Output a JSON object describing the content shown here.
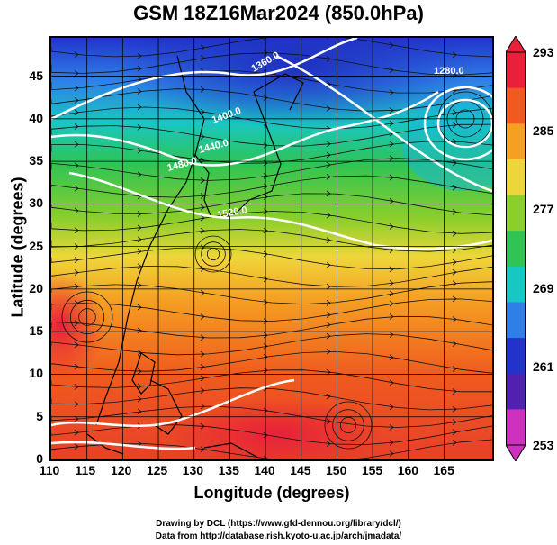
{
  "title": "GSM 18Z16Mar2024 (850.0hPa)",
  "x_axis": {
    "label": "Longitude (degrees)",
    "ticks": [
      "110",
      "115",
      "120",
      "125",
      "130",
      "135",
      "140",
      "145",
      "150",
      "155",
      "160",
      "165"
    ]
  },
  "y_axis": {
    "label": "Latitude (degrees)",
    "ticks": [
      "45",
      "40",
      "35",
      "30",
      "25",
      "20",
      "15",
      "10",
      "5",
      "0"
    ]
  },
  "colorbar": {
    "ticks": [
      "293",
      "285",
      "277",
      "269",
      "261",
      "253"
    ],
    "colors": [
      "#e8203a",
      "#f05a1e",
      "#f5a023",
      "#eed63a",
      "#8ccf2b",
      "#2fc454",
      "#18c6c4",
      "#2f7fe8",
      "#2233cc",
      "#5020b0",
      "#d030c0"
    ]
  },
  "contours": {
    "labels": [
      "1360.0",
      "1280.0",
      "1400.0",
      "1440.0",
      "1480.0",
      "1520.0"
    ]
  },
  "credits": {
    "line1": "Drawing by DCL (https://www.gfd-dennou.org/library/dcl/)",
    "line2": "Data from http://database.rish.kyoto-u.ac.jp/arch/jmadata/"
  },
  "field_colors": {
    "north": "#2b43d4",
    "mid": "#2dc45a",
    "subtropic": "#f0a52a",
    "tropic": "#e84a24",
    "contour": "#ffffff",
    "streamline": "#111111"
  }
}
